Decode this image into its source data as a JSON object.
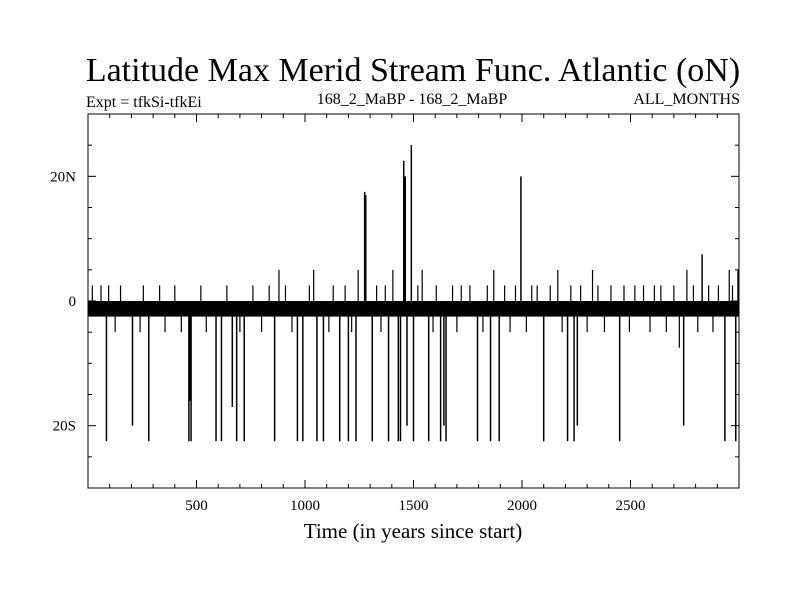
{
  "chart_data": {
    "type": "line",
    "title": "Latitude Max Merid Stream Func. Atlantic (oN)",
    "subtitle_left": "Expt = tfkSi-tfkEi",
    "subtitle_center": "168_2_MaBP - 168_2_MaBP",
    "subtitle_right": "ALL_MONTHS",
    "xlabel": "Time (in years since start)",
    "ylabel": "",
    "xlim": [
      0,
      3000
    ],
    "ylim": [
      -30,
      30
    ],
    "x_ticks": [
      500,
      1000,
      1500,
      2000,
      2500
    ],
    "x_tick_labels": [
      "500",
      "1000",
      "1500",
      "2000",
      "2500"
    ],
    "y_ticks": [
      -20,
      0,
      20
    ],
    "y_tick_labels": [
      "20S",
      "0",
      "20N"
    ],
    "baseline_band": {
      "values": [
        -2.5,
        0
      ],
      "x": [
        0,
        3000
      ]
    },
    "series": [
      {
        "spikes": [
          {
            "x": 85,
            "y": -22.5
          },
          {
            "x": 205,
            "y": -20
          },
          {
            "x": 280,
            "y": -22.5
          },
          {
            "x": 465,
            "y": -22.5
          },
          {
            "x": 470,
            "y": -16
          },
          {
            "x": 475,
            "y": -22.5
          },
          {
            "x": 590,
            "y": -22.5
          },
          {
            "x": 615,
            "y": -22.5
          },
          {
            "x": 665,
            "y": -17
          },
          {
            "x": 685,
            "y": -22.5
          },
          {
            "x": 720,
            "y": -22.5
          },
          {
            "x": 860,
            "y": -22.5
          },
          {
            "x": 965,
            "y": -22.5
          },
          {
            "x": 990,
            "y": -22.5
          },
          {
            "x": 1055,
            "y": -22.5
          },
          {
            "x": 1085,
            "y": -22.5
          },
          {
            "x": 1160,
            "y": -22.5
          },
          {
            "x": 1200,
            "y": -22.5
          },
          {
            "x": 1235,
            "y": -22.5
          },
          {
            "x": 1275,
            "y": 17.5
          },
          {
            "x": 1280,
            "y": 17
          },
          {
            "x": 1310,
            "y": -22.5
          },
          {
            "x": 1385,
            "y": -22.5
          },
          {
            "x": 1430,
            "y": -22.5
          },
          {
            "x": 1440,
            "y": -22.5
          },
          {
            "x": 1455,
            "y": 22.5
          },
          {
            "x": 1462,
            "y": 20
          },
          {
            "x": 1470,
            "y": -20
          },
          {
            "x": 1490,
            "y": 25
          },
          {
            "x": 1500,
            "y": -22.5
          },
          {
            "x": 1570,
            "y": -22.5
          },
          {
            "x": 1625,
            "y": -22.5
          },
          {
            "x": 1640,
            "y": -20
          },
          {
            "x": 1650,
            "y": -22.5
          },
          {
            "x": 1795,
            "y": -22.5
          },
          {
            "x": 1855,
            "y": -22.5
          },
          {
            "x": 1895,
            "y": -22.5
          },
          {
            "x": 1995,
            "y": 20
          },
          {
            "x": 2100,
            "y": -22.5
          },
          {
            "x": 2210,
            "y": -22.5
          },
          {
            "x": 2240,
            "y": -22.5
          },
          {
            "x": 2255,
            "y": -20
          },
          {
            "x": 2450,
            "y": -22.5
          },
          {
            "x": 2745,
            "y": -20
          },
          {
            "x": 2830,
            "y": 7.5
          },
          {
            "x": 2935,
            "y": -22.5
          },
          {
            "x": 2985,
            "y": -22.5
          }
        ],
        "small_excursions": [
          {
            "x": 20,
            "y": 2.5
          },
          {
            "x": 60,
            "y": 2.5
          },
          {
            "x": 95,
            "y": 2.5
          },
          {
            "x": 125,
            "y": -5
          },
          {
            "x": 150,
            "y": 2.5
          },
          {
            "x": 240,
            "y": -5
          },
          {
            "x": 255,
            "y": 2.5
          },
          {
            "x": 330,
            "y": 2.5
          },
          {
            "x": 355,
            "y": -5
          },
          {
            "x": 400,
            "y": 2.5
          },
          {
            "x": 430,
            "y": -5
          },
          {
            "x": 520,
            "y": 2.5
          },
          {
            "x": 545,
            "y": -5
          },
          {
            "x": 640,
            "y": 2.5
          },
          {
            "x": 700,
            "y": -5
          },
          {
            "x": 760,
            "y": 2.5
          },
          {
            "x": 800,
            "y": -5
          },
          {
            "x": 835,
            "y": 2.5
          },
          {
            "x": 880,
            "y": 5
          },
          {
            "x": 910,
            "y": 2.5
          },
          {
            "x": 940,
            "y": -5
          },
          {
            "x": 1020,
            "y": 2.5
          },
          {
            "x": 1040,
            "y": 5
          },
          {
            "x": 1110,
            "y": -5
          },
          {
            "x": 1130,
            "y": 2.5
          },
          {
            "x": 1185,
            "y": 2.5
          },
          {
            "x": 1215,
            "y": -5
          },
          {
            "x": 1245,
            "y": 5
          },
          {
            "x": 1330,
            "y": 2.5
          },
          {
            "x": 1350,
            "y": -5
          },
          {
            "x": 1370,
            "y": 2.5
          },
          {
            "x": 1405,
            "y": 5
          },
          {
            "x": 1520,
            "y": 2.5
          },
          {
            "x": 1540,
            "y": 5
          },
          {
            "x": 1590,
            "y": -5
          },
          {
            "x": 1605,
            "y": 2.5
          },
          {
            "x": 1680,
            "y": 2.5
          },
          {
            "x": 1700,
            "y": -5
          },
          {
            "x": 1720,
            "y": 2.5
          },
          {
            "x": 1760,
            "y": 2.5
          },
          {
            "x": 1820,
            "y": -5
          },
          {
            "x": 1840,
            "y": 2.5
          },
          {
            "x": 1870,
            "y": 5
          },
          {
            "x": 1920,
            "y": 2.5
          },
          {
            "x": 1945,
            "y": -5
          },
          {
            "x": 1970,
            "y": 2.5
          },
          {
            "x": 2020,
            "y": -5
          },
          {
            "x": 2045,
            "y": 2.5
          },
          {
            "x": 2070,
            "y": 2.5
          },
          {
            "x": 2130,
            "y": 2.5
          },
          {
            "x": 2165,
            "y": 5
          },
          {
            "x": 2185,
            "y": -5
          },
          {
            "x": 2225,
            "y": 2.5
          },
          {
            "x": 2270,
            "y": 2.5
          },
          {
            "x": 2300,
            "y": -5
          },
          {
            "x": 2325,
            "y": 5
          },
          {
            "x": 2350,
            "y": 2.5
          },
          {
            "x": 2380,
            "y": -5
          },
          {
            "x": 2410,
            "y": 2.5
          },
          {
            "x": 2470,
            "y": 2.5
          },
          {
            "x": 2495,
            "y": -5
          },
          {
            "x": 2520,
            "y": 2.5
          },
          {
            "x": 2560,
            "y": 2.5
          },
          {
            "x": 2590,
            "y": -5
          },
          {
            "x": 2610,
            "y": 2.5
          },
          {
            "x": 2640,
            "y": 2.5
          },
          {
            "x": 2665,
            "y": -5
          },
          {
            "x": 2700,
            "y": 2.5
          },
          {
            "x": 2725,
            "y": -7.5
          },
          {
            "x": 2760,
            "y": 5
          },
          {
            "x": 2790,
            "y": 2.5
          },
          {
            "x": 2810,
            "y": -5
          },
          {
            "x": 2860,
            "y": 2.5
          },
          {
            "x": 2880,
            "y": -5
          },
          {
            "x": 2905,
            "y": 2.5
          },
          {
            "x": 2955,
            "y": 5
          },
          {
            "x": 2970,
            "y": 2.5
          },
          {
            "x": 2995,
            "y": 5
          }
        ]
      }
    ],
    "colors": {
      "line": "#000000",
      "background": "#ffffff"
    }
  }
}
